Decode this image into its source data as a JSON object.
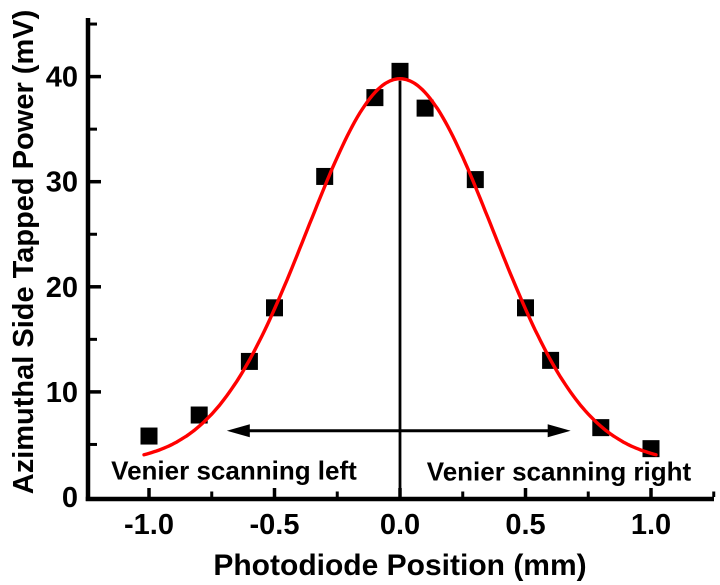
{
  "figure": {
    "background": "#ffffff",
    "axis_color": "#000000",
    "curve_color": "#ff0000",
    "marker_color": "#000000"
  },
  "chart_data": {
    "type": "scatter",
    "title": "",
    "xlabel": "Photodiode Position (mm)",
    "ylabel": "Azimuthal Side Tapped Power (mV)",
    "xlim": [
      -1.25,
      1.25
    ],
    "ylim": [
      0,
      45.5
    ],
    "grid": false,
    "legend": null,
    "x_major_ticks": [
      -1.0,
      -0.5,
      0.0,
      0.5,
      1.0
    ],
    "x_tick_labels": [
      "-1.0",
      "-0.5",
      "0.0",
      "0.5",
      "1.0"
    ],
    "x_minor_ticks": [
      -0.75,
      -0.25,
      0.25,
      0.75,
      1.25
    ],
    "y_major_ticks": [
      0,
      10,
      20,
      30,
      40
    ],
    "y_tick_labels": [
      "0",
      "10",
      "20",
      "30",
      "40"
    ],
    "y_minor_ticks": [
      5,
      15,
      25,
      35,
      45
    ],
    "series": [
      {
        "name": "measured-points",
        "type": "scatter",
        "marker": "square",
        "color": "#000000",
        "x": [
          -1.0,
          -0.8,
          -0.6,
          -0.5,
          -0.3,
          -0.1,
          0.0,
          0.1,
          0.3,
          0.5,
          0.6,
          0.8,
          1.0
        ],
        "y": [
          5.8,
          7.8,
          12.9,
          18.0,
          30.5,
          38.0,
          40.5,
          37.0,
          30.2,
          18.0,
          13.0,
          6.6,
          4.6
        ]
      },
      {
        "name": "gaussian-fit",
        "type": "line",
        "color": "#ff0000",
        "fit": {
          "baseline": 3.2,
          "amplitude": 36.6,
          "sigma": 0.37,
          "x_range": [
            -1.02,
            1.02
          ]
        }
      }
    ],
    "annotations": {
      "left_label": "Venier scanning left",
      "right_label": "Venier scanning right",
      "arrow": {
        "y": 6.3,
        "x_from": -0.69,
        "x_to": 0.68
      },
      "vertical_line": {
        "x": 0.0,
        "y_from": 0,
        "y_to": 39.6
      }
    }
  }
}
